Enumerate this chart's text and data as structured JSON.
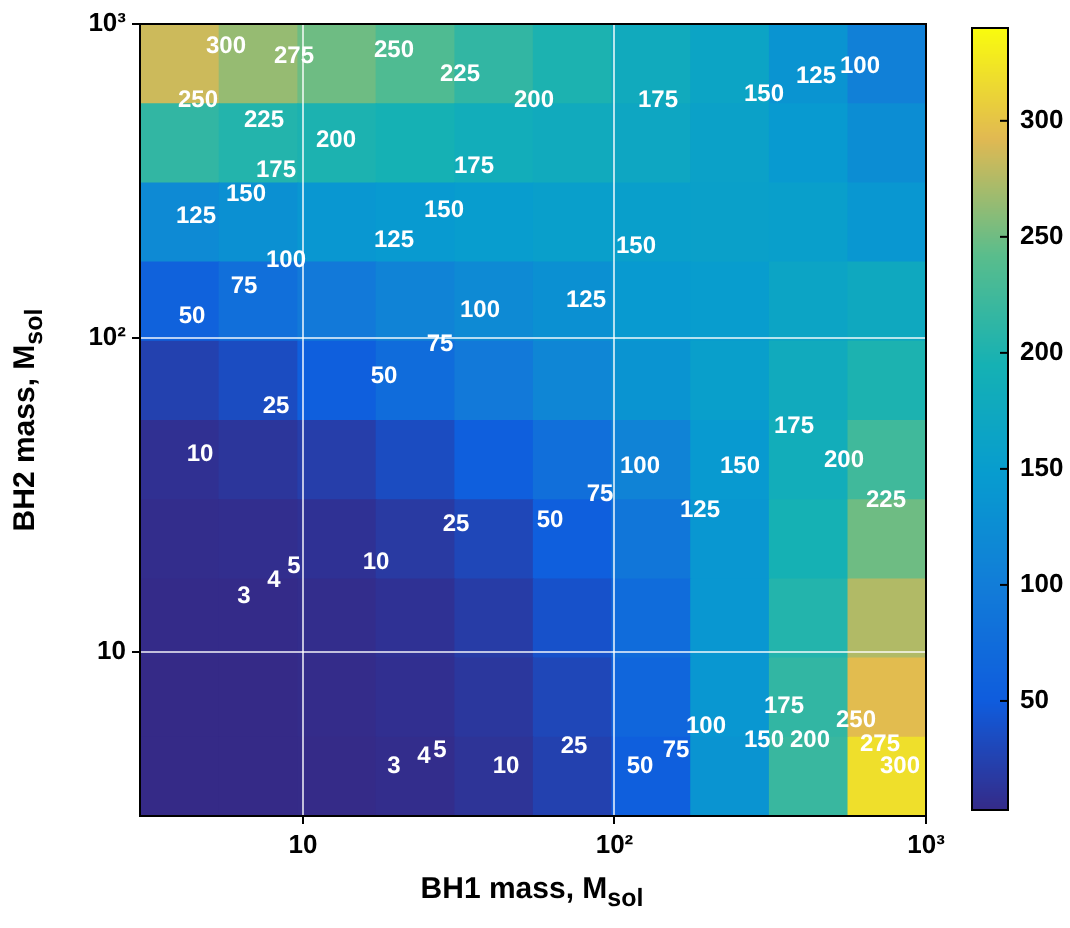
{
  "chart_data": {
    "type": "heatmap",
    "xlabel": "BH1 mass, M$_{sol}$",
    "ylabel": "BH2 mass, M$_{sol}$",
    "x": [
      4.0,
      7.2,
      12.8,
      22.9,
      41,
      73,
      131,
      234,
      419,
      748
    ],
    "cells": [
      [
        285,
        265,
        250,
        235,
        215,
        200,
        180,
        165,
        135,
        105
      ],
      [
        215,
        205,
        200,
        195,
        185,
        180,
        170,
        160,
        145,
        125
      ],
      [
        120,
        130,
        140,
        145,
        150,
        155,
        155,
        158,
        155,
        140
      ],
      [
        60,
        80,
        95,
        110,
        120,
        130,
        145,
        150,
        165,
        175
      ],
      [
        25,
        35,
        55,
        75,
        95,
        115,
        135,
        155,
        180,
        200
      ],
      [
        9,
        14,
        22,
        35,
        55,
        80,
        110,
        145,
        185,
        225
      ],
      [
        6,
        7,
        10,
        18,
        30,
        55,
        90,
        140,
        195,
        250
      ],
      [
        4,
        4,
        6,
        10,
        20,
        40,
        75,
        140,
        205,
        275
      ],
      [
        3,
        3.2,
        4.5,
        8,
        15,
        30,
        65,
        140,
        215,
        295
      ],
      [
        3,
        3,
        3.5,
        6,
        12,
        25,
        55,
        135,
        220,
        320
      ]
    ],
    "xlim": [
      3,
      1000
    ],
    "ylim": [
      3,
      1000
    ],
    "xticks": [
      10,
      {
        "value": 100,
        "label": "10²"
      },
      {
        "value": 1000,
        "label": "10³"
      }
    ],
    "yticks": [
      10,
      {
        "value": 100,
        "label": "10²"
      },
      {
        "value": 1000,
        "label": "10³"
      }
    ],
    "log": "xy",
    "grid": true,
    "legend": false,
    "clim": [
      3,
      340
    ],
    "cticks": [
      50,
      100,
      150,
      200,
      250,
      300
    ],
    "annotations": [
      "300",
      "275",
      "250",
      "225",
      "200",
      "175",
      "150",
      "125",
      "100",
      "250",
      "225",
      "200",
      "175",
      "175",
      "150",
      "150",
      "150",
      "125",
      "125",
      "125",
      "100",
      "100",
      "75",
      "75",
      "50",
      "50",
      "25",
      "10",
      "25",
      "50",
      "75",
      "100",
      "125",
      "150",
      "175",
      "200",
      "225",
      "10",
      "5",
      "4",
      "3",
      "3",
      "4",
      "5",
      "10",
      "25",
      "50",
      "75",
      "100",
      "150",
      "175",
      "200",
      "250",
      "275",
      "300"
    ]
  }
}
